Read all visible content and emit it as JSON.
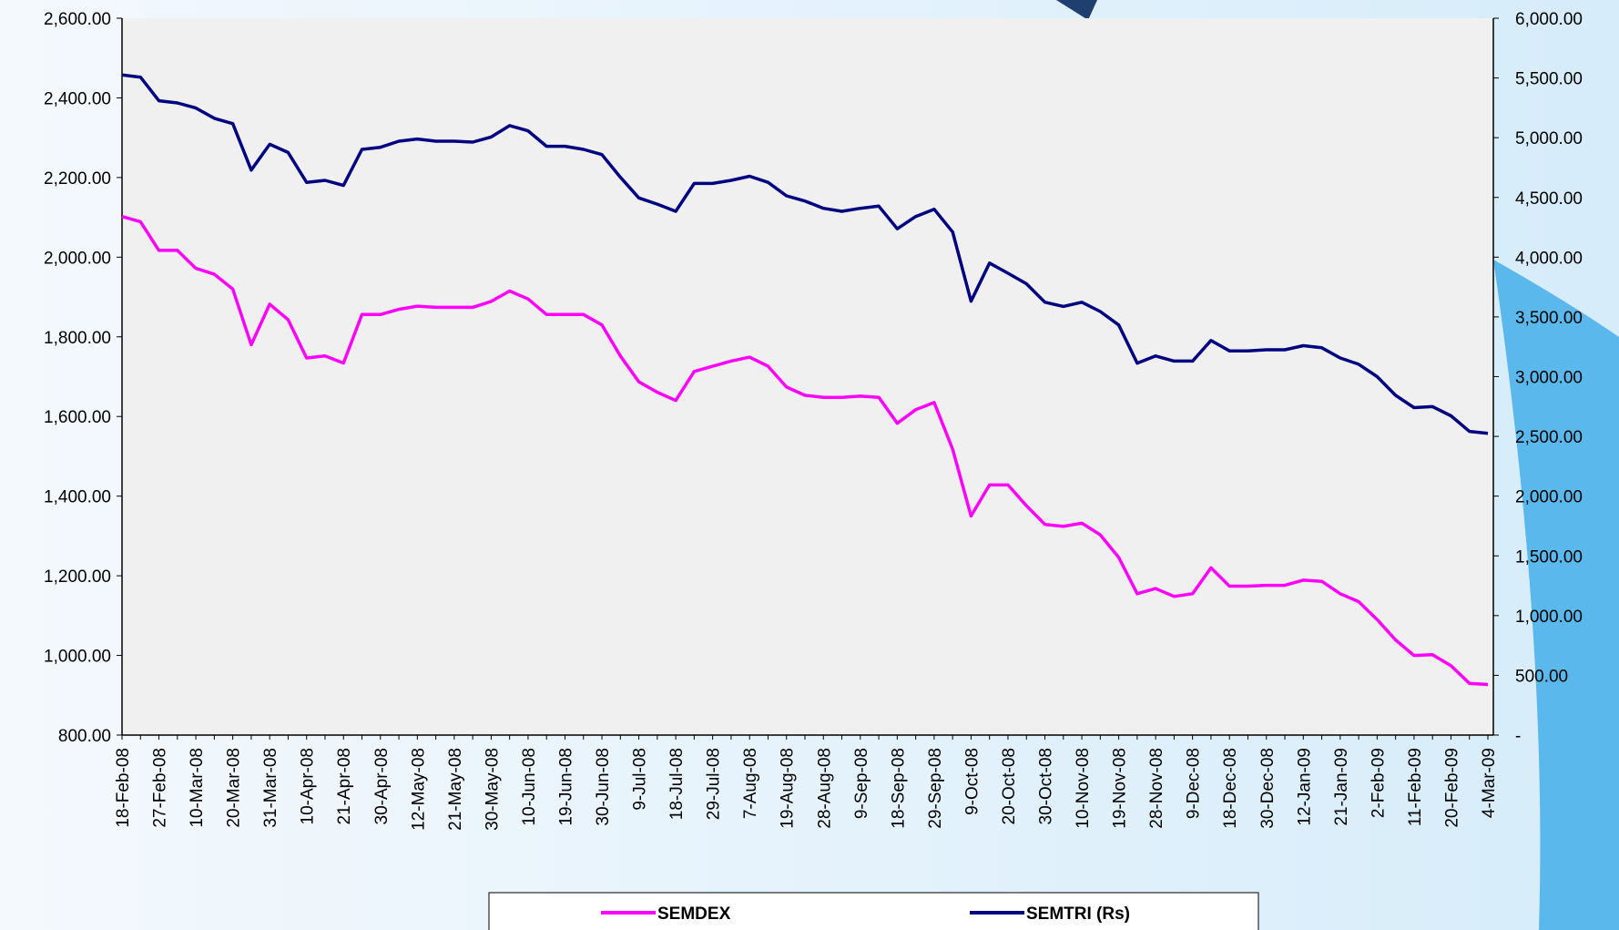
{
  "chart_data": {
    "type": "line",
    "categories": [
      "18-Feb-08",
      null,
      "27-Feb-08",
      null,
      "10-Mar-08",
      null,
      "20-Mar-08",
      null,
      "31-Mar-08",
      null,
      "10-Apr-08",
      null,
      "21-Apr-08",
      null,
      "30-Apr-08",
      null,
      "12-May-08",
      null,
      "21-May-08",
      null,
      "30-May-08",
      null,
      "10-Jun-08",
      null,
      "19-Jun-08",
      null,
      "30-Jun-08",
      null,
      "9-Jul-08",
      null,
      "18-Jul-08",
      null,
      "29-Jul-08",
      null,
      "7-Aug-08",
      null,
      "19-Aug-08",
      null,
      "28-Aug-08",
      null,
      "9-Sep-08",
      null,
      "18-Sep-08",
      null,
      "29-Sep-08",
      null,
      "9-Oct-08",
      null,
      "20-Oct-08",
      null,
      "30-Oct-08",
      null,
      "10-Nov-08",
      null,
      "19-Nov-08",
      null,
      "28-Nov-08",
      null,
      "9-Dec-08",
      null,
      "18-Dec-08",
      null,
      "30-Dec-08",
      null,
      "12-Jan-09",
      null,
      "21-Jan-09",
      null,
      "2-Feb-09",
      null,
      "11-Feb-09",
      null,
      "20-Feb-09",
      null,
      "4-Mar-09"
    ],
    "series": [
      {
        "name": "SEMDEX",
        "color": "#ff00ff",
        "axis": "y",
        "values": [
          2102,
          2089,
          2017,
          2017,
          1972,
          1957,
          1920,
          1780,
          1882,
          1843,
          1747,
          1752,
          1734,
          1856,
          1856,
          1869,
          1877,
          1874,
          1874,
          1874,
          1889,
          1915,
          1895,
          1856,
          1856,
          1856,
          1830,
          1752,
          1687,
          1661,
          1640,
          1713,
          1726,
          1739,
          1749,
          1726,
          1674,
          1653,
          1648,
          1648,
          1651,
          1648,
          1583,
          1617,
          1635,
          1518,
          1350,
          1428,
          1428,
          1376,
          1329,
          1324,
          1332,
          1303,
          1246,
          1155,
          1168,
          1148,
          1155,
          1220,
          1174,
          1174,
          1176,
          1176,
          1189,
          1186,
          1155,
          1135,
          1090,
          1039,
          1000,
          1002,
          974,
          930,
          927
        ]
      },
      {
        "name": "SEMTRI (Rs)",
        "color": "#000080",
        "axis": "y2",
        "values": [
          5525,
          5507,
          5309,
          5291,
          5248,
          5162,
          5118,
          4729,
          4945,
          4876,
          4626,
          4643,
          4600,
          4902,
          4920,
          4971,
          4989,
          4971,
          4971,
          4963,
          5006,
          5101,
          5058,
          4928,
          4928,
          4902,
          4859,
          4669,
          4496,
          4444,
          4384,
          4617,
          4617,
          4643,
          4677,
          4626,
          4513,
          4470,
          4409,
          4384,
          4409,
          4427,
          4237,
          4340,
          4401,
          4211,
          3631,
          3951,
          3865,
          3778,
          3623,
          3588,
          3623,
          3545,
          3432,
          3113,
          3173,
          3130,
          3130,
          3303,
          3216,
          3216,
          3225,
          3225,
          3259,
          3242,
          3156,
          3104,
          3000,
          2844,
          2741,
          2749,
          2672,
          2542,
          2525
        ]
      }
    ],
    "ylim": [
      800,
      2600
    ],
    "yticks": [
      {
        "value": 800,
        "label": "800.00"
      },
      {
        "value": 1000,
        "label": "1,000.00"
      },
      {
        "value": 1200,
        "label": "1,200.00"
      },
      {
        "value": 1400,
        "label": "1,400.00"
      },
      {
        "value": 1600,
        "label": "1,600.00"
      },
      {
        "value": 1800,
        "label": "1,800.00"
      },
      {
        "value": 2000,
        "label": "2,000.00"
      },
      {
        "value": 2200,
        "label": "2,200.00"
      },
      {
        "value": 2400,
        "label": "2,400.00"
      },
      {
        "value": 2600,
        "label": "2,600.00"
      }
    ],
    "y2lim": [
      0,
      6000
    ],
    "y2ticks": [
      {
        "value": 0,
        "label": "-"
      },
      {
        "value": 500,
        "label": "500.00"
      },
      {
        "value": 1000,
        "label": "1,000.00"
      },
      {
        "value": 1500,
        "label": "1,500.00"
      },
      {
        "value": 2000,
        "label": "2,000.00"
      },
      {
        "value": 2500,
        "label": "2,500.00"
      },
      {
        "value": 3000,
        "label": "3,000.00"
      },
      {
        "value": 3500,
        "label": "3,500.00"
      },
      {
        "value": 4000,
        "label": "4,000.00"
      },
      {
        "value": 4500,
        "label": "4,500.00"
      },
      {
        "value": 5000,
        "label": "5,000.00"
      },
      {
        "value": 5500,
        "label": "5,500.00"
      },
      {
        "value": 6000,
        "label": "6,000.00"
      }
    ],
    "grid": false,
    "legend": "bottom"
  }
}
